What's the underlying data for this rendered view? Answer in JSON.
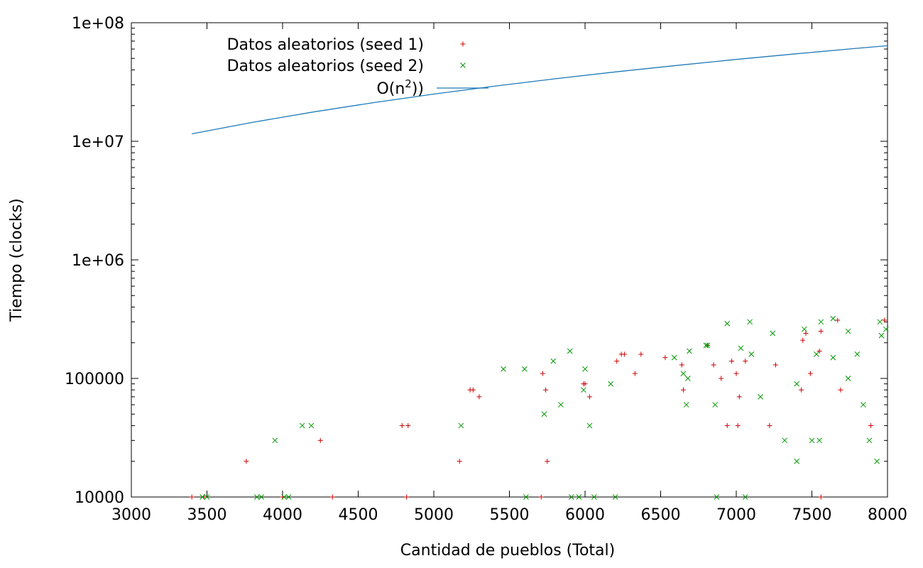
{
  "chart_data": {
    "type": "scatter",
    "xlabel": "Cantidad de pueblos (Total)",
    "ylabel": "Tiempo (clocks)",
    "xlim": [
      3000,
      8000
    ],
    "ylim": [
      10000,
      100000000
    ],
    "yscale": "log",
    "grid": false,
    "legend_position": "top-left",
    "x_ticks": [
      3000,
      3500,
      4000,
      4500,
      5000,
      5500,
      6000,
      6500,
      7000,
      7500,
      8000
    ],
    "x_tick_labels": [
      "3000",
      "3500",
      "4000",
      "4500",
      "5000",
      "5500",
      "6000",
      "6500",
      "7000",
      "7500",
      "8000"
    ],
    "y_ticks": [
      10000,
      100000,
      1000000,
      10000000,
      100000000
    ],
    "y_tick_labels": [
      "10000",
      "100000",
      "1e+06",
      "1e+07",
      "1e+08"
    ],
    "series": [
      {
        "name": "Datos aleatorios (seed 1)",
        "marker": "plus",
        "color": "#cc0000",
        "points": [
          [
            3400,
            10000
          ],
          [
            3480,
            10000
          ],
          [
            3760,
            20000
          ],
          [
            4000,
            10000
          ],
          [
            4250,
            30000
          ],
          [
            4330,
            10000
          ],
          [
            4790,
            40000
          ],
          [
            4830,
            40000
          ],
          [
            4820,
            10000
          ],
          [
            5170,
            20000
          ],
          [
            5240,
            80000
          ],
          [
            5260,
            80000
          ],
          [
            5300,
            70000
          ],
          [
            5710,
            10000
          ],
          [
            5720,
            110000
          ],
          [
            5740,
            80000
          ],
          [
            5750,
            20000
          ],
          [
            5990,
            90000
          ],
          [
            6000,
            90000
          ],
          [
            6030,
            70000
          ],
          [
            6210,
            140000
          ],
          [
            6240,
            160000
          ],
          [
            6260,
            160000
          ],
          [
            6330,
            110000
          ],
          [
            6370,
            160000
          ],
          [
            6530,
            150000
          ],
          [
            6640,
            130000
          ],
          [
            6650,
            80000
          ],
          [
            6810,
            190000
          ],
          [
            6850,
            130000
          ],
          [
            6900,
            100000
          ],
          [
            6940,
            40000
          ],
          [
            6970,
            140000
          ],
          [
            7000,
            110000
          ],
          [
            7010,
            40000
          ],
          [
            7020,
            70000
          ],
          [
            7060,
            140000
          ],
          [
            7220,
            40000
          ],
          [
            7260,
            130000
          ],
          [
            7430,
            80000
          ],
          [
            7440,
            210000
          ],
          [
            7460,
            240000
          ],
          [
            7490,
            110000
          ],
          [
            7550,
            170000
          ],
          [
            7560,
            250000
          ],
          [
            7560,
            10000
          ],
          [
            7670,
            310000
          ],
          [
            7690,
            80000
          ],
          [
            7890,
            40000
          ],
          [
            7980,
            310000
          ]
        ]
      },
      {
        "name": "Datos aleatorios (seed 2)",
        "marker": "cross",
        "color": "#009900",
        "points": [
          [
            3470,
            10000
          ],
          [
            3500,
            10000
          ],
          [
            3830,
            10000
          ],
          [
            3860,
            10000
          ],
          [
            3950,
            30000
          ],
          [
            4010,
            10000
          ],
          [
            4040,
            10000
          ],
          [
            4130,
            40000
          ],
          [
            4190,
            40000
          ],
          [
            5180,
            40000
          ],
          [
            5460,
            120000
          ],
          [
            5600,
            120000
          ],
          [
            5610,
            10000
          ],
          [
            5730,
            50000
          ],
          [
            5790,
            140000
          ],
          [
            5840,
            60000
          ],
          [
            5900,
            170000
          ],
          [
            5910,
            10000
          ],
          [
            5960,
            10000
          ],
          [
            5990,
            80000
          ],
          [
            6000,
            120000
          ],
          [
            6030,
            40000
          ],
          [
            6060,
            10000
          ],
          [
            6170,
            90000
          ],
          [
            6200,
            10000
          ],
          [
            6590,
            150000
          ],
          [
            6650,
            110000
          ],
          [
            6670,
            60000
          ],
          [
            6680,
            100000
          ],
          [
            6690,
            170000
          ],
          [
            6800,
            190000
          ],
          [
            6810,
            190000
          ],
          [
            6860,
            60000
          ],
          [
            6870,
            10000
          ],
          [
            6940,
            290000
          ],
          [
            7030,
            180000
          ],
          [
            7060,
            10000
          ],
          [
            7090,
            300000
          ],
          [
            7100,
            160000
          ],
          [
            7160,
            70000
          ],
          [
            7240,
            240000
          ],
          [
            7320,
            30000
          ],
          [
            7400,
            90000
          ],
          [
            7400,
            20000
          ],
          [
            7450,
            260000
          ],
          [
            7500,
            30000
          ],
          [
            7530,
            160000
          ],
          [
            7550,
            30000
          ],
          [
            7560,
            300000
          ],
          [
            7640,
            320000
          ],
          [
            7640,
            150000
          ],
          [
            7740,
            250000
          ],
          [
            7740,
            100000
          ],
          [
            7800,
            160000
          ],
          [
            7840,
            60000
          ],
          [
            7880,
            30000
          ],
          [
            7930,
            20000
          ],
          [
            7950,
            300000
          ],
          [
            7960,
            230000
          ],
          [
            7990,
            260000
          ]
        ]
      },
      {
        "name": "O(n<sup>2</sup>))",
        "legend_text_base": "O(n",
        "legend_text_sup": "2",
        "legend_text_tail": "))",
        "type": "line",
        "color": "#1f7ab8",
        "x": [
          3400,
          3800,
          4200,
          4600,
          5000,
          5400,
          5800,
          6200,
          6600,
          7000,
          7400,
          7800,
          8000
        ],
        "values": [
          11560000,
          14440000,
          17640000,
          21160000,
          25000000,
          29160000,
          33640000,
          38440000,
          43560000,
          49000000,
          54760000,
          60840000,
          64000000
        ]
      }
    ]
  }
}
